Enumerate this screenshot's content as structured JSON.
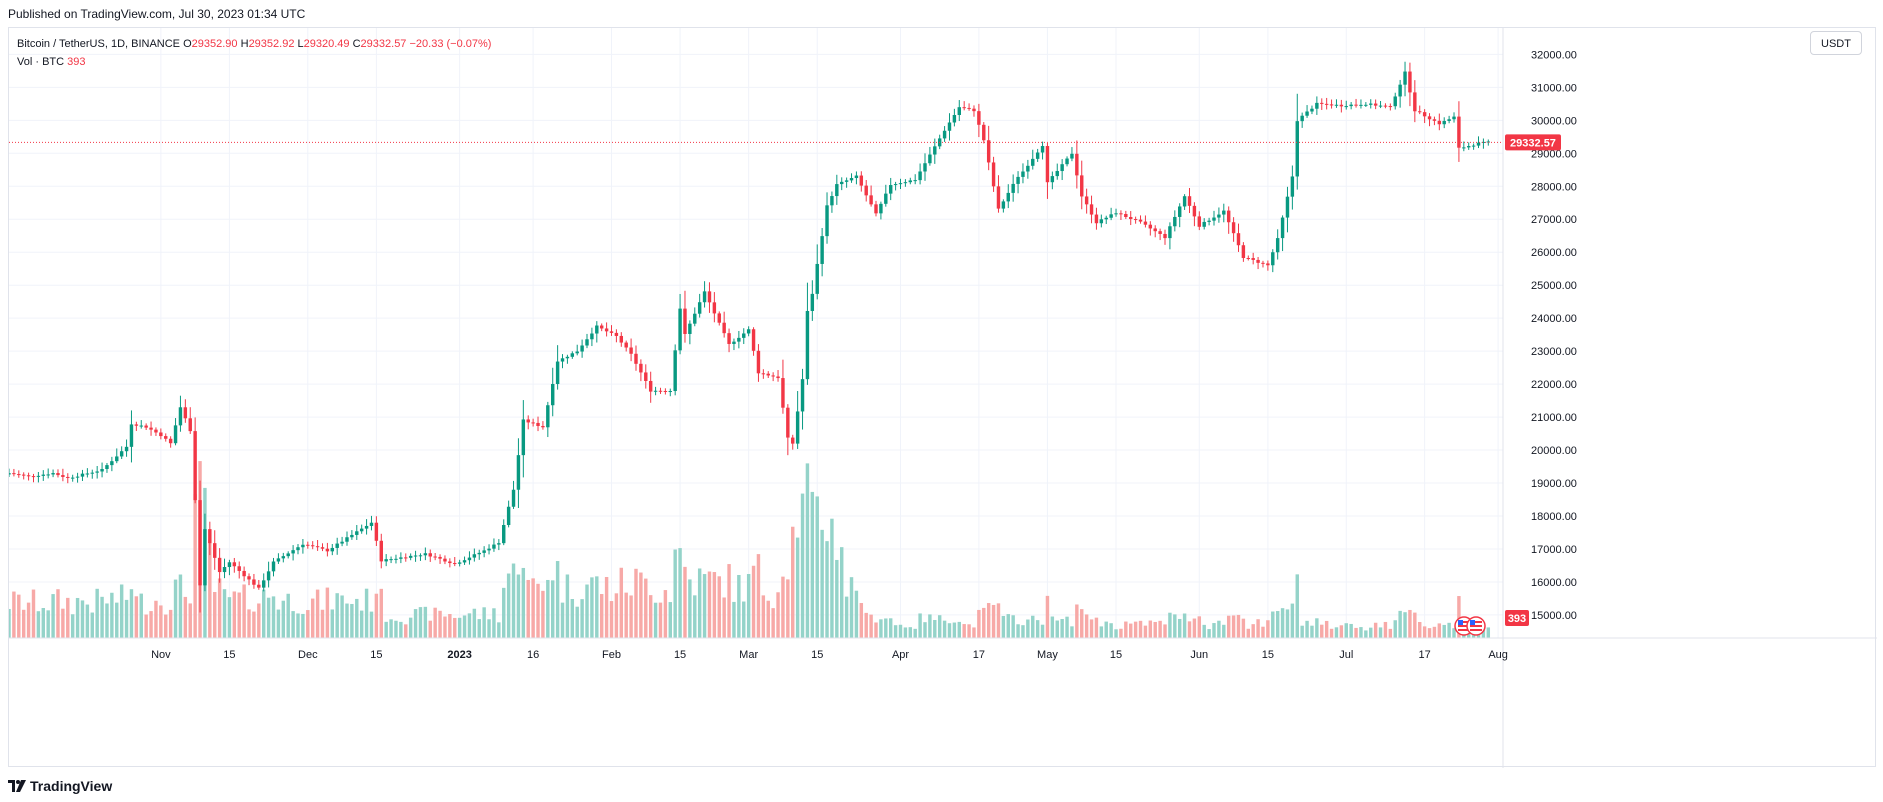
{
  "header": {
    "published": "Published on TradingView.com, Jul 30, 2023 01:34 UTC"
  },
  "legend": {
    "symbol": "Bitcoin / TetherUS, 1D, BINANCE",
    "o_label": "O",
    "o": "29352.90",
    "h_label": "H",
    "h": "29352.92",
    "l_label": "L",
    "l": "29320.49",
    "c_label": "C",
    "c": "29332.57",
    "change": "−20.33 (−0.07%)",
    "vol_label": "Vol · BTC",
    "vol": "393"
  },
  "currency_button": "USDT",
  "last_price_tag": "29332.57",
  "volume_tag": "393",
  "footer": {
    "brand": "TradingView"
  },
  "colors": {
    "up": "#089981",
    "down": "#f23645",
    "vol_up": "#94d3c9",
    "vol_down": "#f7a9a7",
    "grid": "#f0f3fa",
    "price_line": "#f23645"
  },
  "chart_data": {
    "type": "candlestick",
    "title": "Bitcoin / TetherUS, 1D, BINANCE",
    "xlim": [
      "2022-10-01",
      "2023-08-02"
    ],
    "ylim": [
      14300,
      32800
    ],
    "y_ticks": [
      15000,
      16000,
      17000,
      18000,
      19000,
      20000,
      21000,
      22000,
      23000,
      24000,
      25000,
      26000,
      27000,
      28000,
      29000,
      30000,
      31000,
      32000
    ],
    "x_ticks": [
      {
        "date": "2022-11-01",
        "label": "Nov"
      },
      {
        "date": "2022-11-15",
        "label": "15"
      },
      {
        "date": "2022-12-01",
        "label": "Dec"
      },
      {
        "date": "2022-12-15",
        "label": "15"
      },
      {
        "date": "2023-01-01",
        "label": "2023"
      },
      {
        "date": "2023-01-16",
        "label": "16"
      },
      {
        "date": "2023-02-01",
        "label": "Feb"
      },
      {
        "date": "2023-02-15",
        "label": "15"
      },
      {
        "date": "2023-03-01",
        "label": "Mar"
      },
      {
        "date": "2023-03-15",
        "label": "15"
      },
      {
        "date": "2023-04-01",
        "label": "Apr"
      },
      {
        "date": "2023-04-17",
        "label": "17"
      },
      {
        "date": "2023-05-01",
        "label": "May"
      },
      {
        "date": "2023-05-15",
        "label": "15"
      },
      {
        "date": "2023-06-01",
        "label": "Jun"
      },
      {
        "date": "2023-06-15",
        "label": "15"
      },
      {
        "date": "2023-07-01",
        "label": "Jul"
      },
      {
        "date": "2023-07-17",
        "label": "17"
      },
      {
        "date": "2023-08-01",
        "label": "Aug"
      }
    ],
    "series_close": {
      "start_date": "2022-10-01",
      "end_date": "2023-07-30",
      "anchors": [
        [
          "2022-10-01",
          19300
        ],
        [
          "2022-10-05",
          19200
        ],
        [
          "2022-10-10",
          19300
        ],
        [
          "2022-10-13",
          19150
        ],
        [
          "2022-10-20",
          19400
        ],
        [
          "2022-10-25",
          20100
        ],
        [
          "2022-10-26",
          20800
        ],
        [
          "2022-10-29",
          20700
        ],
        [
          "2022-11-01",
          20450
        ],
        [
          "2022-11-03",
          20200
        ],
        [
          "2022-11-05",
          21300
        ],
        [
          "2022-11-07",
          20600
        ],
        [
          "2022-11-08",
          18500
        ],
        [
          "2022-11-09",
          15900
        ],
        [
          "2022-11-10",
          17600
        ],
        [
          "2022-11-13",
          16300
        ],
        [
          "2022-11-15",
          16600
        ],
        [
          "2022-11-21",
          15800
        ],
        [
          "2022-11-24",
          16600
        ],
        [
          "2022-11-30",
          17150
        ],
        [
          "2022-12-05",
          16950
        ],
        [
          "2022-12-14",
          17800
        ],
        [
          "2022-12-16",
          16650
        ],
        [
          "2022-12-25",
          16850
        ],
        [
          "2022-12-31",
          16550
        ],
        [
          "2023-01-06",
          16950
        ],
        [
          "2023-01-09",
          17200
        ],
        [
          "2023-01-12",
          18800
        ],
        [
          "2023-01-14",
          20900
        ],
        [
          "2023-01-18",
          20700
        ],
        [
          "2023-01-21",
          22700
        ],
        [
          "2023-01-25",
          23000
        ],
        [
          "2023-01-29",
          23750
        ],
        [
          "2023-02-02",
          23450
        ],
        [
          "2023-02-05",
          22900
        ],
        [
          "2023-02-09",
          21800
        ],
        [
          "2023-02-13",
          21800
        ],
        [
          "2023-02-15",
          24300
        ],
        [
          "2023-02-16",
          23500
        ],
        [
          "2023-02-20",
          24800
        ],
        [
          "2023-02-22",
          24150
        ],
        [
          "2023-02-25",
          23200
        ],
        [
          "2023-03-01",
          23650
        ],
        [
          "2023-03-03",
          22350
        ],
        [
          "2023-03-07",
          22200
        ],
        [
          "2023-03-09",
          20350
        ],
        [
          "2023-03-10",
          20200
        ],
        [
          "2023-03-12",
          22150
        ],
        [
          "2023-03-13",
          24200
        ],
        [
          "2023-03-14",
          24750
        ],
        [
          "2023-03-17",
          27400
        ],
        [
          "2023-03-19",
          28050
        ],
        [
          "2023-03-23",
          28300
        ],
        [
          "2023-03-27",
          27150
        ],
        [
          "2023-03-30",
          28050
        ],
        [
          "2023-04-04",
          28200
        ],
        [
          "2023-04-10",
          29700
        ],
        [
          "2023-04-13",
          30400
        ],
        [
          "2023-04-16",
          30300
        ],
        [
          "2023-04-18",
          29400
        ],
        [
          "2023-04-21",
          27300
        ],
        [
          "2023-04-25",
          28300
        ],
        [
          "2023-04-26",
          28450
        ],
        [
          "2023-04-30",
          29250
        ],
        [
          "2023-05-01",
          28100
        ],
        [
          "2023-05-06",
          29000
        ],
        [
          "2023-05-08",
          27700
        ],
        [
          "2023-05-11",
          26900
        ],
        [
          "2023-05-15",
          27200
        ],
        [
          "2023-05-20",
          26900
        ],
        [
          "2023-05-25",
          26450
        ],
        [
          "2023-05-29",
          27700
        ],
        [
          "2023-06-01",
          26800
        ],
        [
          "2023-06-06",
          27250
        ],
        [
          "2023-06-10",
          25850
        ],
        [
          "2023-06-15",
          25600
        ],
        [
          "2023-06-17",
          26400
        ],
        [
          "2023-06-20",
          28300
        ],
        [
          "2023-06-21",
          30000
        ],
        [
          "2023-06-25",
          30500
        ],
        [
          "2023-06-30",
          30450
        ],
        [
          "2023-07-05",
          30500
        ],
        [
          "2023-07-10",
          30400
        ],
        [
          "2023-07-13",
          31450
        ],
        [
          "2023-07-15",
          30300
        ],
        [
          "2023-07-20",
          29900
        ],
        [
          "2023-07-23",
          30100
        ],
        [
          "2023-07-24",
          29150
        ],
        [
          "2023-07-28",
          29300
        ],
        [
          "2023-07-30",
          29332.57
        ]
      ]
    },
    "last_price": 29332.57,
    "volume_series": {
      "name": "Vol · BTC",
      "last": 393
    }
  }
}
